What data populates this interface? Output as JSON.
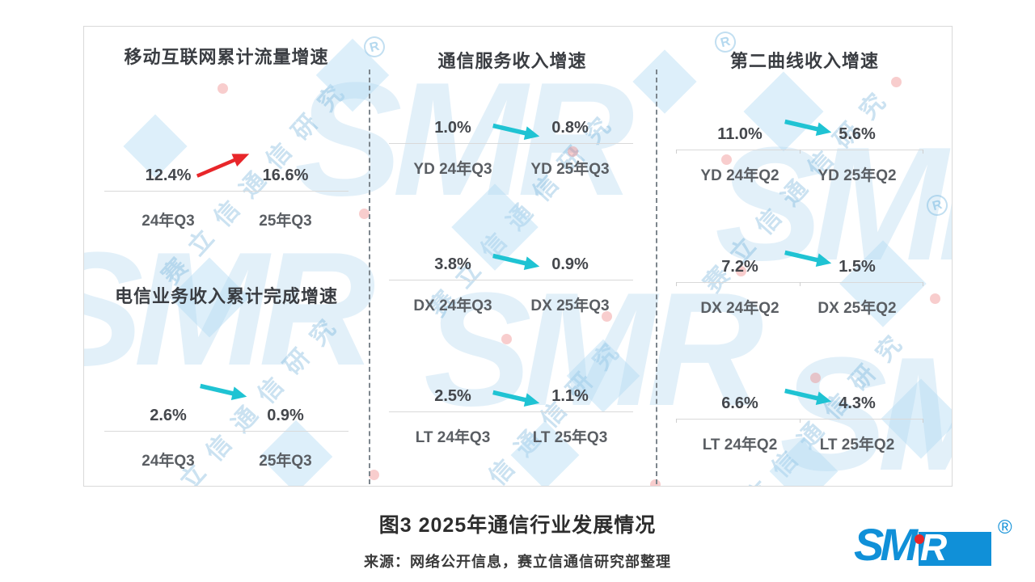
{
  "caption": {
    "figure_title": "图3 2025年通信行业发展情况",
    "source": "来源：网络公开信息，赛立信通信研究部整理"
  },
  "watermark": {
    "brand": "SMR",
    "line": "赛立信通信研究",
    "reg": "R"
  },
  "logo": {
    "sm": "SM",
    "r": "R",
    "registered": "®"
  },
  "colors": {
    "bar_previous": "#d7e3a6",
    "bar_current": "#a9d4ea",
    "arrow_up": "#e8262a",
    "arrow_down": "#1fc3d3",
    "divider": "#7d868d",
    "baseline": "#d9d9d9",
    "panel_border": "#d9d9d9",
    "logo_blue": "#1090d8",
    "logo_dot_red": "#e8262a"
  },
  "chart_data": [
    {
      "id": "mobile-traffic-growth",
      "type": "bar",
      "title": "移动互联网累计流量增速",
      "categories": [
        "24年Q3",
        "25年Q3"
      ],
      "values": [
        12.4,
        16.6
      ],
      "value_labels": [
        "12.4%",
        "16.6%"
      ],
      "unit": "%",
      "ylim": [
        0,
        24
      ],
      "trend": "up"
    },
    {
      "id": "telecom-revenue-growth",
      "type": "bar",
      "title": "电信业务收入累计完成增速",
      "categories": [
        "24年Q3",
        "25年Q3"
      ],
      "values": [
        2.6,
        0.9
      ],
      "value_labels": [
        "2.6%",
        "0.9%"
      ],
      "unit": "%",
      "ylim": [
        0,
        4
      ],
      "trend": "down"
    },
    {
      "id": "service-revenue-yd",
      "type": "bar",
      "group_title": "通信服务收入增速",
      "categories": [
        "YD 24年Q3",
        "YD 25年Q3"
      ],
      "values": [
        1.0,
        0.8
      ],
      "value_labels": [
        "1.0%",
        "0.8%"
      ],
      "unit": "%",
      "ylim": [
        0,
        7
      ],
      "trend": "down"
    },
    {
      "id": "service-revenue-dx",
      "type": "bar",
      "categories": [
        "DX 24年Q3",
        "DX 25年Q3"
      ],
      "values": [
        3.8,
        0.9
      ],
      "value_labels": [
        "3.8%",
        "0.9%"
      ],
      "unit": "%",
      "ylim": [
        0,
        5.4
      ],
      "trend": "down"
    },
    {
      "id": "service-revenue-lt",
      "type": "bar",
      "categories": [
        "LT 24年Q3",
        "LT 25年Q3"
      ],
      "values": [
        2.5,
        1.1
      ],
      "value_labels": [
        "2.5%",
        "1.1%"
      ],
      "unit": "%",
      "ylim": [
        0,
        7
      ],
      "trend": "down"
    },
    {
      "id": "second-curve-yd",
      "type": "bar",
      "group_title": "第二曲线收入增速",
      "categories": [
        "YD 24年Q2",
        "YD 25年Q2"
      ],
      "values": [
        11.0,
        5.6
      ],
      "value_labels": [
        "11.0%",
        "5.6%"
      ],
      "unit": "%",
      "ylim": [
        0,
        16.5
      ],
      "trend": "down"
    },
    {
      "id": "second-curve-dx",
      "type": "bar",
      "categories": [
        "DX 24年Q2",
        "DX 25年Q2"
      ],
      "values": [
        7.2,
        1.5
      ],
      "value_labels": [
        "7.2%",
        "1.5%"
      ],
      "unit": "%",
      "ylim": [
        0,
        18
      ],
      "trend": "down"
    },
    {
      "id": "second-curve-lt",
      "type": "bar",
      "categories": [
        "LT 24年Q2",
        "LT 25年Q2"
      ],
      "values": [
        6.6,
        4.3
      ],
      "value_labels": [
        "6.6%",
        "4.3%"
      ],
      "unit": "%",
      "ylim": [
        0,
        16
      ],
      "trend": "down"
    }
  ]
}
